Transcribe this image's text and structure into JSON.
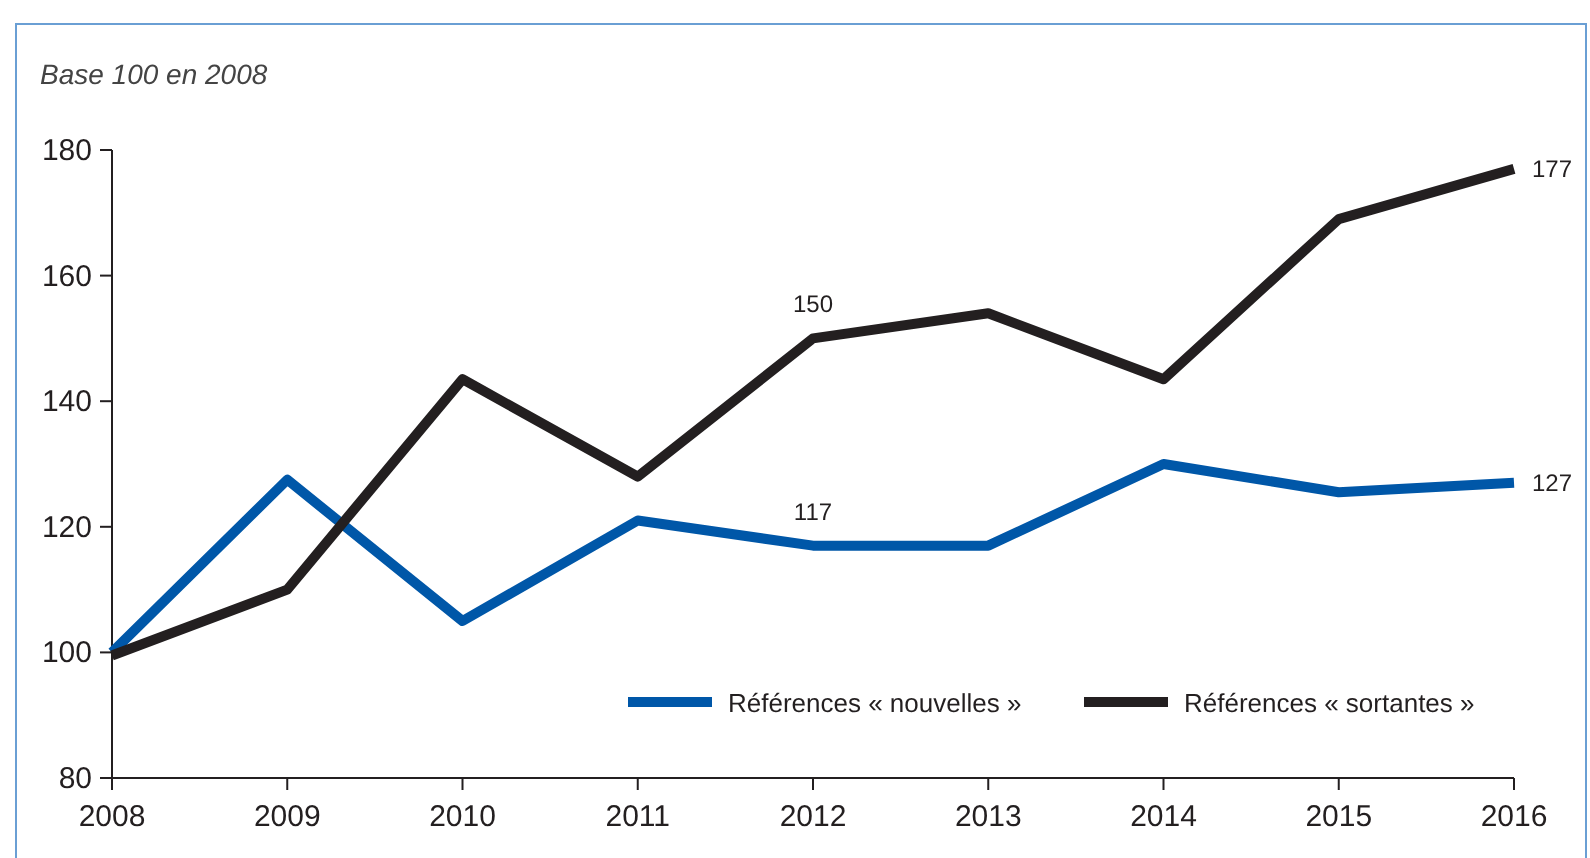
{
  "chart_data": {
    "type": "line",
    "ylabel": "Base 100 en 2008",
    "categories": [
      "2008",
      "2009",
      "2010",
      "2011",
      "2012",
      "2013",
      "2014",
      "2015",
      "2016"
    ],
    "ylim": [
      80,
      180
    ],
    "yticks": [
      80,
      100,
      120,
      140,
      160,
      180
    ],
    "grid": false,
    "legend": "bottom right",
    "marker": "none",
    "line_style": "solid",
    "series": [
      {
        "name": "Références « nouvelles »",
        "color": "#0057a8",
        "values": [
          100,
          127.5,
          105,
          121,
          117,
          117,
          130,
          125.5,
          127
        ],
        "value_labels": [
          null,
          null,
          null,
          null,
          "117",
          null,
          null,
          null,
          "127"
        ]
      },
      {
        "name": "Références « sortantes »",
        "color": "#231f20",
        "values": [
          99.5,
          110,
          143.5,
          128,
          150,
          154,
          143.5,
          169,
          177
        ],
        "value_labels": [
          null,
          null,
          null,
          null,
          "150",
          null,
          null,
          null,
          "177"
        ]
      }
    ]
  }
}
